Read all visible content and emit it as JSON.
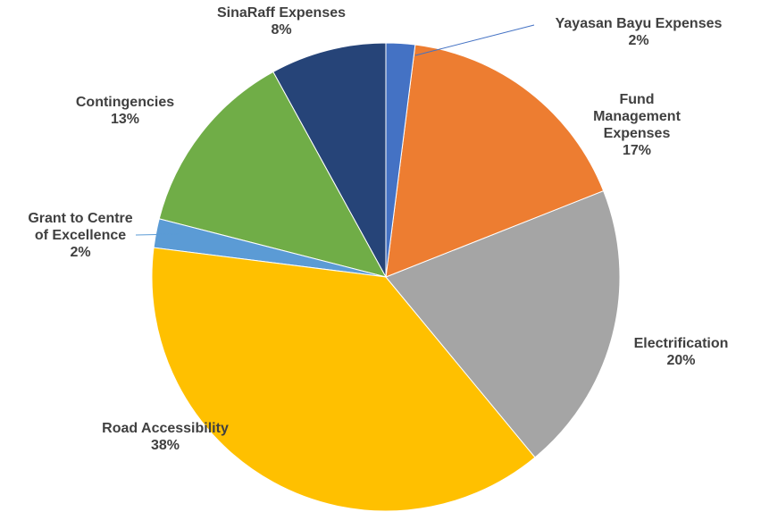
{
  "chart_data": {
    "type": "pie",
    "categories": [
      "Yayasan Bayu Expenses",
      "Fund Management Expenses",
      "Electrification",
      "Road Accessibility",
      "Grant to Centre of Excellence",
      "Contingencies",
      "SinaRaff Expenses"
    ],
    "values": [
      2,
      17,
      20,
      38,
      2,
      13,
      8
    ],
    "value_labels": [
      "2%",
      "17%",
      "20%",
      "38%",
      "2%",
      "13%",
      "8%"
    ],
    "colors": [
      "#4472c4",
      "#ed7d31",
      "#a5a5a5",
      "#ffc000",
      "#5b9bd5",
      "#70ad47",
      "#264478"
    ]
  }
}
